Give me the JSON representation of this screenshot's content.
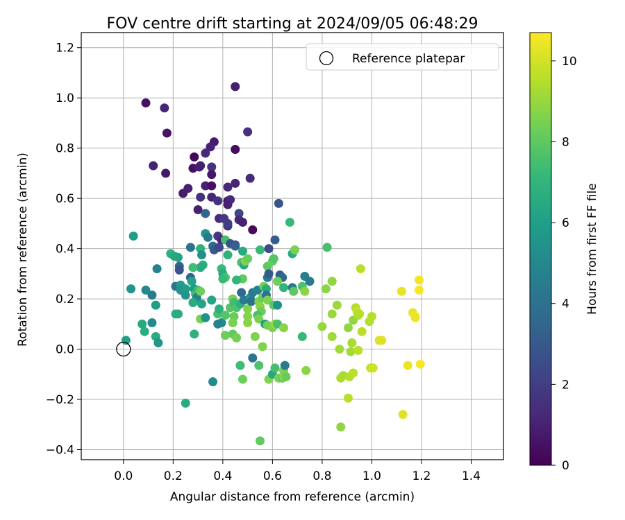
{
  "chart_data": {
    "type": "scatter",
    "title": "FOV centre drift starting at 2024/09/05 06:48:29",
    "xlabel": "Angular distance from reference (arcmin)",
    "ylabel": "Rotation from reference (arcmin)",
    "xlim": [
      -0.17,
      1.53
    ],
    "ylim": [
      -0.44,
      1.26
    ],
    "xticks": [
      0.0,
      0.2,
      0.4,
      0.6,
      0.8,
      1.0,
      1.2,
      1.4
    ],
    "xtick_labels": [
      "0.0",
      "0.2",
      "0.4",
      "0.6",
      "0.8",
      "1.0",
      "1.2",
      "1.4"
    ],
    "yticks": [
      -0.4,
      -0.2,
      0.0,
      0.2,
      0.4,
      0.6,
      0.8,
      1.0,
      1.2
    ],
    "ytick_labels": [
      "−0.4",
      "−0.2",
      "0.0",
      "0.2",
      "0.4",
      "0.6",
      "0.8",
      "1.0",
      "1.2"
    ],
    "grid": true,
    "legend": {
      "position": "top-right",
      "entries": [
        {
          "label": "Reference platepar",
          "marker": "open-circle"
        }
      ]
    },
    "reference_point": {
      "x": 0.0,
      "y": 0.0
    },
    "colorbar": {
      "label": "Hours from first FF file",
      "range": [
        0,
        10.7
      ],
      "ticks": [
        0,
        2,
        4,
        6,
        8,
        10
      ],
      "tick_labels": [
        "0",
        "2",
        "4",
        "6",
        "8",
        "10"
      ],
      "colormap": "viridis"
    },
    "colormap_stops": [
      "#440154",
      "#482878",
      "#3e4989",
      "#31688e",
      "#26828e",
      "#1f9e89",
      "#35b779",
      "#6ece58",
      "#b5de2b",
      "#fde725"
    ],
    "series": [
      {
        "points": [
          [
            0.09,
            0.98,
            0.5
          ],
          [
            0.165,
            0.96,
            1.1
          ],
          [
            0.175,
            0.86,
            0.6
          ],
          [
            0.12,
            0.73,
            1.0
          ],
          [
            0.17,
            0.7,
            0.7
          ],
          [
            0.45,
            1.045,
            0.9
          ],
          [
            0.5,
            0.865,
            1.5
          ],
          [
            0.45,
            0.795,
            0.3
          ],
          [
            0.365,
            0.825,
            0.8
          ],
          [
            0.35,
            0.805,
            1.0
          ],
          [
            0.33,
            0.78,
            1.2
          ],
          [
            0.285,
            0.765,
            0.2
          ],
          [
            0.28,
            0.72,
            0.5
          ],
          [
            0.31,
            0.73,
            1.0
          ],
          [
            0.305,
            0.725,
            0.9
          ],
          [
            0.355,
            0.725,
            1.6
          ],
          [
            0.355,
            0.695,
            0.7
          ],
          [
            0.26,
            0.64,
            1.0
          ],
          [
            0.24,
            0.62,
            0.8
          ],
          [
            0.33,
            0.65,
            1.0
          ],
          [
            0.355,
            0.65,
            0.5
          ],
          [
            0.42,
            0.645,
            1.2
          ],
          [
            0.45,
            0.66,
            1.1
          ],
          [
            0.51,
            0.68,
            1.3
          ],
          [
            0.31,
            0.605,
            1.5
          ],
          [
            0.355,
            0.605,
            1.1
          ],
          [
            0.42,
            0.59,
            0.6
          ],
          [
            0.43,
            0.595,
            1.3
          ],
          [
            0.42,
            0.575,
            1.0
          ],
          [
            0.38,
            0.59,
            1.6
          ],
          [
            0.3,
            0.555,
            1.0
          ],
          [
            0.33,
            0.54,
            3.5
          ],
          [
            0.465,
            0.54,
            2.3
          ],
          [
            0.625,
            0.58,
            2.8
          ],
          [
            0.385,
            0.52,
            1.3
          ],
          [
            0.405,
            0.52,
            1.8
          ],
          [
            0.465,
            0.515,
            1.2
          ],
          [
            0.48,
            0.505,
            1.0
          ],
          [
            0.42,
            0.49,
            1.6
          ],
          [
            0.42,
            0.5,
            1.9
          ],
          [
            0.52,
            0.475,
            0.2
          ],
          [
            0.38,
            0.45,
            1.8
          ],
          [
            0.395,
            0.435,
            1.2
          ],
          [
            0.45,
            0.415,
            2.1
          ],
          [
            0.04,
            0.45,
            6.0
          ],
          [
            0.33,
            0.46,
            5.5
          ],
          [
            0.34,
            0.445,
            4.3
          ],
          [
            0.36,
            0.41,
            3.8
          ],
          [
            0.365,
            0.395,
            3.0
          ],
          [
            0.385,
            0.405,
            2.3
          ],
          [
            0.41,
            0.435,
            7.5
          ],
          [
            0.43,
            0.42,
            2.8
          ],
          [
            0.45,
            0.41,
            3.3
          ],
          [
            0.48,
            0.39,
            6.5
          ],
          [
            0.55,
            0.395,
            7.2
          ],
          [
            0.585,
            0.4,
            2.5
          ],
          [
            0.61,
            0.435,
            3.2
          ],
          [
            0.67,
            0.505,
            7.2
          ],
          [
            0.68,
            0.38,
            6.6
          ],
          [
            0.69,
            0.395,
            8.5
          ],
          [
            0.19,
            0.38,
            6.8
          ],
          [
            0.205,
            0.37,
            6.4
          ],
          [
            0.22,
            0.365,
            6.3
          ],
          [
            0.27,
            0.405,
            4.1
          ],
          [
            0.31,
            0.4,
            6.8
          ],
          [
            0.315,
            0.375,
            5.4
          ],
          [
            0.32,
            0.335,
            6.7
          ],
          [
            0.31,
            0.325,
            6.5
          ],
          [
            0.28,
            0.325,
            7.4
          ],
          [
            0.225,
            0.33,
            3.5
          ],
          [
            0.225,
            0.315,
            2.8
          ],
          [
            0.135,
            0.32,
            4.8
          ],
          [
            0.395,
            0.32,
            7.2
          ],
          [
            0.4,
            0.3,
            6.5
          ],
          [
            0.41,
            0.285,
            7.7
          ],
          [
            0.42,
            0.375,
            6.9
          ],
          [
            0.475,
            0.345,
            7.7
          ],
          [
            0.485,
            0.335,
            6.4
          ],
          [
            0.49,
            0.35,
            8.6
          ],
          [
            0.5,
            0.36,
            8.2
          ],
          [
            0.58,
            0.33,
            8.0
          ],
          [
            0.6,
            0.35,
            8.2
          ],
          [
            0.605,
            0.36,
            7.8
          ],
          [
            0.58,
            0.285,
            4.3
          ],
          [
            0.585,
            0.3,
            3.0
          ],
          [
            0.63,
            0.295,
            3.2
          ],
          [
            0.64,
            0.285,
            3.6
          ],
          [
            0.62,
            0.27,
            8.3
          ],
          [
            0.645,
            0.245,
            7.0
          ],
          [
            0.68,
            0.245,
            4.5
          ],
          [
            0.685,
            0.23,
            8.0
          ],
          [
            0.72,
            0.25,
            7.6
          ],
          [
            0.73,
            0.29,
            4.6
          ],
          [
            0.75,
            0.27,
            4.4
          ],
          [
            0.73,
            0.23,
            8.8
          ],
          [
            0.03,
            0.24,
            5.5
          ],
          [
            0.09,
            0.235,
            5.0
          ],
          [
            0.115,
            0.215,
            4.5
          ],
          [
            0.13,
            0.175,
            6.0
          ],
          [
            0.21,
            0.25,
            4.1
          ],
          [
            0.23,
            0.255,
            5.9
          ],
          [
            0.23,
            0.235,
            5.5
          ],
          [
            0.25,
            0.24,
            6.0
          ],
          [
            0.25,
            0.215,
            5.5
          ],
          [
            0.27,
            0.285,
            3.5
          ],
          [
            0.275,
            0.27,
            6.2
          ],
          [
            0.285,
            0.24,
            5.7
          ],
          [
            0.29,
            0.22,
            7.4
          ],
          [
            0.3,
            0.235,
            7.3
          ],
          [
            0.295,
            0.205,
            4.7
          ],
          [
            0.28,
            0.185,
            6.6
          ],
          [
            0.31,
            0.23,
            8.3
          ],
          [
            0.315,
            0.18,
            6.3
          ],
          [
            0.21,
            0.14,
            6.8
          ],
          [
            0.22,
            0.14,
            6.6
          ],
          [
            0.075,
            0.1,
            6.4
          ],
          [
            0.085,
            0.07,
            6.6
          ],
          [
            0.115,
            0.105,
            5.1
          ],
          [
            0.13,
            0.05,
            6.6
          ],
          [
            0.14,
            0.025,
            5.6
          ],
          [
            0.01,
            0.035,
            6.0
          ],
          [
            0.355,
            0.195,
            6.3
          ],
          [
            0.38,
            0.14,
            7.5
          ],
          [
            0.385,
            0.16,
            6.7
          ],
          [
            0.395,
            0.105,
            5.1
          ],
          [
            0.4,
            0.28,
            7.2
          ],
          [
            0.41,
            0.135,
            7.8
          ],
          [
            0.43,
            0.165,
            7.8
          ],
          [
            0.44,
            0.2,
            8.5
          ],
          [
            0.445,
            0.185,
            7.4
          ],
          [
            0.455,
            0.165,
            7.7
          ],
          [
            0.445,
            0.13,
            8.2
          ],
          [
            0.44,
            0.105,
            8.5
          ],
          [
            0.47,
            0.18,
            6.9
          ],
          [
            0.48,
            0.28,
            8.0
          ],
          [
            0.455,
            0.275,
            7.0
          ],
          [
            0.475,
            0.225,
            3.6
          ],
          [
            0.485,
            0.195,
            4.5
          ],
          [
            0.5,
            0.16,
            8.6
          ],
          [
            0.51,
            0.205,
            5.5
          ],
          [
            0.515,
            0.19,
            4.1
          ],
          [
            0.52,
            0.225,
            4.4
          ],
          [
            0.54,
            0.235,
            4.8
          ],
          [
            0.545,
            0.19,
            8.5
          ],
          [
            0.55,
            0.17,
            8.8
          ],
          [
            0.56,
            0.205,
            8.2
          ],
          [
            0.565,
            0.25,
            8.4
          ],
          [
            0.575,
            0.24,
            6.6
          ],
          [
            0.575,
            0.215,
            4.0
          ],
          [
            0.58,
            0.195,
            8.6
          ],
          [
            0.555,
            0.15,
            8.3
          ],
          [
            0.54,
            0.135,
            7.6
          ],
          [
            0.545,
            0.12,
            8.5
          ],
          [
            0.57,
            0.1,
            5.9
          ],
          [
            0.58,
            0.095,
            8.4
          ],
          [
            0.6,
            0.085,
            8.6
          ],
          [
            0.605,
            0.175,
            7.9
          ],
          [
            0.61,
            0.1,
            9.0
          ],
          [
            0.62,
            0.1,
            7.5
          ],
          [
            0.62,
            0.175,
            5.4
          ],
          [
            0.645,
            0.085,
            8.8
          ],
          [
            0.5,
            0.105,
            8.8
          ],
          [
            0.5,
            0.13,
            8.7
          ],
          [
            0.41,
            0.055,
            8.3
          ],
          [
            0.44,
            0.06,
            8.1
          ],
          [
            0.455,
            0.045,
            8.4
          ],
          [
            0.53,
            0.05,
            8.6
          ],
          [
            0.56,
            0.01,
            8.6
          ],
          [
            0.285,
            0.06,
            6.8
          ],
          [
            0.31,
            0.12,
            8.5
          ],
          [
            0.33,
            0.125,
            5.4
          ],
          [
            0.38,
            0.1,
            4.8
          ],
          [
            0.72,
            0.05,
            7.2
          ],
          [
            0.47,
            -0.065,
            7.4
          ],
          [
            0.48,
            -0.12,
            8.3
          ],
          [
            0.52,
            -0.035,
            4.2
          ],
          [
            0.545,
            -0.065,
            7.7
          ],
          [
            0.55,
            -0.365,
            8.1
          ],
          [
            0.585,
            -0.12,
            8.6
          ],
          [
            0.6,
            -0.1,
            6.4
          ],
          [
            0.61,
            -0.075,
            7.5
          ],
          [
            0.625,
            -0.115,
            8.5
          ],
          [
            0.64,
            -0.115,
            8.0
          ],
          [
            0.645,
            -0.11,
            8.8
          ],
          [
            0.645,
            -0.085,
            8.6
          ],
          [
            0.65,
            -0.065,
            4.5
          ],
          [
            0.655,
            -0.11,
            8.2
          ],
          [
            0.735,
            -0.085,
            8.8
          ],
          [
            0.36,
            -0.13,
            5.1
          ],
          [
            0.25,
            -0.215,
            6.5
          ],
          [
            0.8,
            0.09,
            9.0
          ],
          [
            0.815,
            0.24,
            8.8
          ],
          [
            0.82,
            0.405,
            7.5
          ],
          [
            0.84,
            0.27,
            8.9
          ],
          [
            0.84,
            0.14,
            9.1
          ],
          [
            0.84,
            0.05,
            9.2
          ],
          [
            0.86,
            0.175,
            9.1
          ],
          [
            0.87,
            0.0,
            9.2
          ],
          [
            0.875,
            -0.115,
            9.4
          ],
          [
            0.885,
            -0.105,
            9.3
          ],
          [
            0.875,
            -0.31,
            8.9
          ],
          [
            0.905,
            0.085,
            8.9
          ],
          [
            0.905,
            -0.195,
            9.6
          ],
          [
            0.91,
            -0.11,
            9.5
          ],
          [
            0.915,
            -0.01,
            9.2
          ],
          [
            0.92,
            0.025,
            9.3
          ],
          [
            0.925,
            0.115,
            8.9
          ],
          [
            0.925,
            -0.095,
            9.6
          ],
          [
            0.935,
            0.165,
            9.5
          ],
          [
            0.94,
            0.15,
            9.8
          ],
          [
            0.945,
            0.135,
            9.4
          ],
          [
            0.945,
            -0.005,
            9.6
          ],
          [
            0.95,
            0.14,
            9.5
          ],
          [
            0.955,
            0.32,
            9.6
          ],
          [
            0.96,
            0.07,
            9.6
          ],
          [
            0.99,
            0.11,
            9.5
          ],
          [
            0.995,
            -0.075,
            9.8
          ],
          [
            1.0,
            0.13,
            9.5
          ],
          [
            1.005,
            -0.075,
            9.9
          ],
          [
            1.03,
            0.035,
            10.1
          ],
          [
            1.04,
            0.035,
            10.2
          ],
          [
            1.12,
            0.23,
            10.3
          ],
          [
            1.125,
            -0.26,
            10.2
          ],
          [
            1.145,
            -0.065,
            10.4
          ],
          [
            1.165,
            0.145,
            10.3
          ],
          [
            1.175,
            0.13,
            10.6
          ],
          [
            1.175,
            0.125,
            10.4
          ],
          [
            1.19,
            0.275,
            10.5
          ],
          [
            1.19,
            0.235,
            10.6
          ],
          [
            1.195,
            -0.06,
            10.6
          ]
        ]
      }
    ]
  }
}
